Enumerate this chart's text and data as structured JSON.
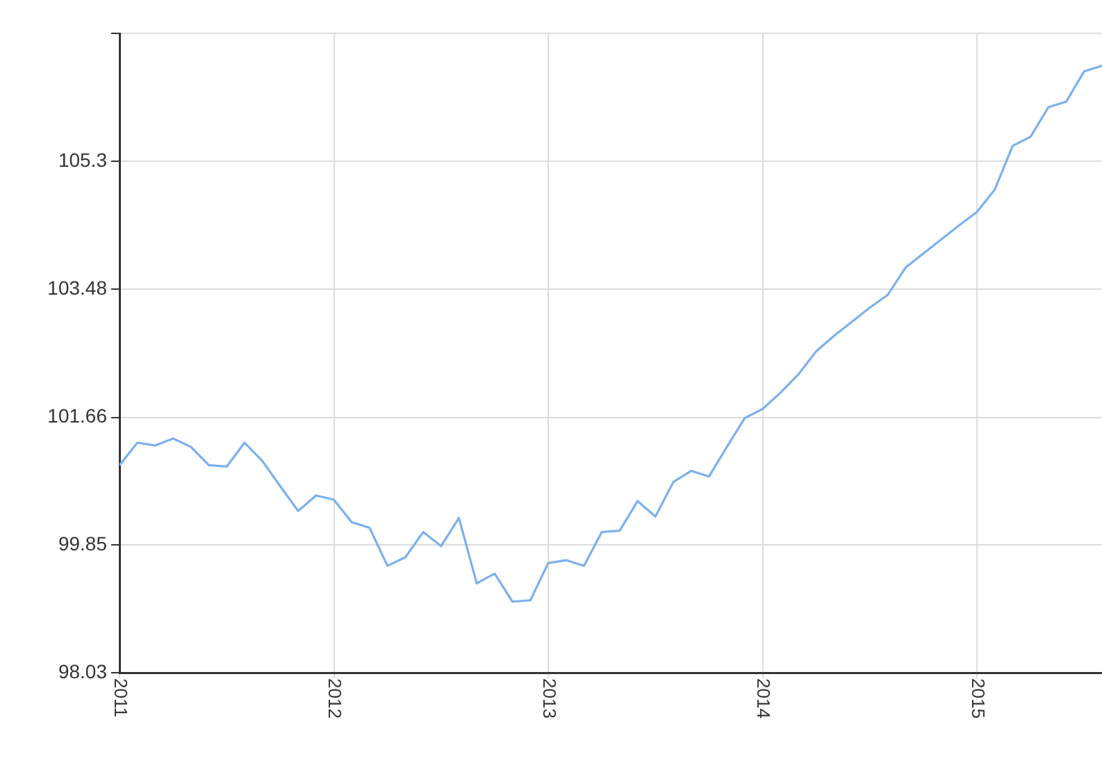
{
  "chart_data": {
    "type": "line",
    "x": [
      "2011-01",
      "2011-02",
      "2011-03",
      "2011-04",
      "2011-05",
      "2011-06",
      "2011-07",
      "2011-08",
      "2011-09",
      "2011-10",
      "2011-11",
      "2011-12",
      "2012-01",
      "2012-02",
      "2012-03",
      "2012-04",
      "2012-05",
      "2012-06",
      "2012-07",
      "2012-08",
      "2012-09",
      "2012-10",
      "2012-11",
      "2012-12",
      "2013-01",
      "2013-02",
      "2013-03",
      "2013-04",
      "2013-05",
      "2013-06",
      "2013-07",
      "2013-08",
      "2013-09",
      "2013-10",
      "2013-11",
      "2013-12",
      "2014-01",
      "2014-02",
      "2014-03",
      "2014-04",
      "2014-05",
      "2014-06",
      "2014-07",
      "2014-08",
      "2014-09",
      "2014-10",
      "2014-11",
      "2014-12",
      "2015-01",
      "2015-02",
      "2015-03",
      "2015-04",
      "2015-05",
      "2015-06",
      "2015-07",
      "2015-08"
    ],
    "series": [
      {
        "color": "#7cb0ee",
        "values": [
          100.98,
          101.3,
          101.26,
          101.36,
          101.24,
          100.98,
          100.96,
          101.3,
          101.04,
          100.68,
          100.33,
          100.55,
          100.49,
          100.17,
          100.09,
          99.55,
          99.67,
          100.03,
          99.83,
          100.23,
          99.3,
          99.44,
          99.04,
          99.06,
          99.59,
          99.63,
          99.55,
          100.03,
          100.05,
          100.47,
          100.25,
          100.74,
          100.9,
          100.82,
          101.24,
          101.65,
          101.78,
          102.01,
          102.27,
          102.6,
          102.82,
          103.02,
          103.22,
          103.4,
          103.79,
          103.99,
          104.19,
          104.39,
          104.58,
          104.9,
          105.52,
          105.65,
          106.07,
          106.15,
          106.58,
          106.66
        ]
      }
    ],
    "xlim": [
      "2011-01",
      "2015-08"
    ],
    "xticks": [
      {
        "value": "2011",
        "label": "2011"
      },
      {
        "value": "2012",
        "label": "2012"
      },
      {
        "value": "2013",
        "label": "2013"
      },
      {
        "value": "2014",
        "label": "2014"
      },
      {
        "value": "2015",
        "label": "2015"
      }
    ],
    "ylim": [
      98.03,
      107.12
    ],
    "yticks": [
      98.03,
      99.85,
      101.66,
      103.48,
      105.3,
      {
        "value": 107.12,
        "label": null
      }
    ],
    "grid": true,
    "legend": false,
    "marker": "none",
    "line_style": "solid"
  }
}
